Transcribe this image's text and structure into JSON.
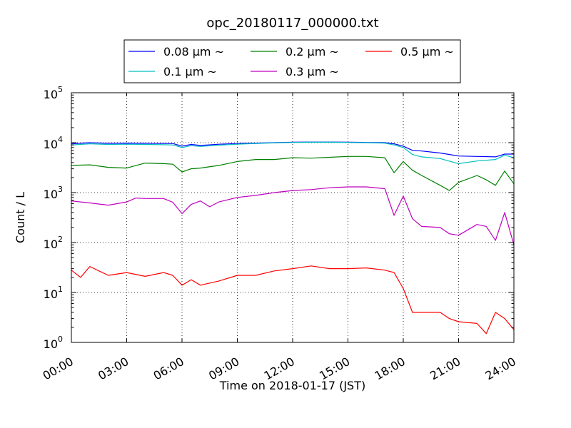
{
  "chart_data": {
    "type": "line",
    "title": "opc_20180117_000000.txt",
    "xlabel": "Time on 2018-01-17 (JST)",
    "ylabel": "Count / L",
    "x_ticks": [
      "00:00",
      "03:00",
      "06:00",
      "09:00",
      "12:00",
      "15:00",
      "18:00",
      "21:00",
      "24:00"
    ],
    "y_scale": "log",
    "ylim": [
      1,
      100000
    ],
    "xlim": [
      "00:00",
      "24:00"
    ],
    "y_ticks": [
      {
        "base": "10",
        "exp": "0"
      },
      {
        "base": "10",
        "exp": "1"
      },
      {
        "base": "10",
        "exp": "2"
      },
      {
        "base": "10",
        "exp": "3"
      },
      {
        "base": "10",
        "exp": "4"
      },
      {
        "base": "10",
        "exp": "5"
      }
    ],
    "grid": true,
    "legend_position": "top-center",
    "series": [
      {
        "name": "0.08 μm ~",
        "color": "#0000ff",
        "x": [
          "00:00",
          "01:00",
          "02:00",
          "03:00",
          "04:00",
          "05:00",
          "05:30",
          "06:00",
          "06:30",
          "07:00",
          "08:00",
          "09:00",
          "10:00",
          "11:00",
          "12:00",
          "13:00",
          "14:00",
          "15:00",
          "16:00",
          "17:00",
          "17:30",
          "18:00",
          "18:30",
          "19:00",
          "20:00",
          "21:00",
          "22:00",
          "23:00",
          "23:30",
          "24:00"
        ],
        "values": [
          9500,
          10000,
          9700,
          9800,
          9700,
          9600,
          9600,
          8500,
          9200,
          8800,
          9300,
          9600,
          9800,
          10000,
          10200,
          10300,
          10300,
          10200,
          10100,
          10000,
          9500,
          8500,
          7000,
          6800,
          6200,
          5400,
          5300,
          5200,
          5900,
          5900
        ]
      },
      {
        "name": "0.1 μm ~",
        "color": "#00bfbf",
        "x": [
          "00:00",
          "01:00",
          "02:00",
          "03:00",
          "04:00",
          "05:00",
          "05:30",
          "06:00",
          "06:30",
          "07:00",
          "08:00",
          "09:00",
          "10:00",
          "11:00",
          "12:00",
          "13:00",
          "14:00",
          "15:00",
          "16:00",
          "17:00",
          "17:30",
          "18:00",
          "18:30",
          "19:00",
          "20:00",
          "21:00",
          "22:00",
          "23:00",
          "23:30",
          "24:00"
        ],
        "values": [
          9000,
          9500,
          9200,
          9300,
          9200,
          9100,
          9000,
          8000,
          8700,
          8400,
          8900,
          9300,
          9600,
          9900,
          10100,
          10200,
          10200,
          10100,
          10000,
          9800,
          9000,
          8000,
          5800,
          5200,
          4800,
          3800,
          4300,
          4600,
          5600,
          5000
        ]
      },
      {
        "name": "0.2 μm ~",
        "color": "#008000",
        "x": [
          "00:00",
          "01:00",
          "02:00",
          "03:00",
          "04:00",
          "05:00",
          "05:30",
          "06:00",
          "06:30",
          "07:00",
          "08:00",
          "09:00",
          "10:00",
          "11:00",
          "12:00",
          "13:00",
          "14:00",
          "15:00",
          "16:00",
          "17:00",
          "17:30",
          "18:00",
          "18:30",
          "19:00",
          "20:00",
          "20:30",
          "21:00",
          "22:00",
          "22:30",
          "23:00",
          "23:30",
          "24:00"
        ],
        "values": [
          3500,
          3600,
          3200,
          3100,
          3900,
          3800,
          3700,
          2600,
          3000,
          3100,
          3500,
          4200,
          4600,
          4600,
          5000,
          4900,
          5100,
          5300,
          5300,
          5000,
          2500,
          4200,
          2800,
          2200,
          1400,
          1100,
          1600,
          2200,
          1800,
          1400,
          2700,
          1500
        ]
      },
      {
        "name": "0.3 μm ~",
        "color": "#bf00bf",
        "x": [
          "00:00",
          "01:00",
          "02:00",
          "03:00",
          "03:30",
          "04:00",
          "05:00",
          "05:30",
          "06:00",
          "06:30",
          "07:00",
          "07:30",
          "08:00",
          "09:00",
          "10:00",
          "11:00",
          "12:00",
          "13:00",
          "14:00",
          "15:00",
          "16:00",
          "17:00",
          "17:30",
          "18:00",
          "18:30",
          "19:00",
          "20:00",
          "20:30",
          "21:00",
          "22:00",
          "22:30",
          "23:00",
          "23:30",
          "24:00"
        ],
        "values": [
          680,
          620,
          560,
          650,
          780,
          760,
          760,
          640,
          380,
          580,
          680,
          520,
          650,
          800,
          880,
          1000,
          1100,
          1150,
          1250,
          1300,
          1300,
          1200,
          350,
          850,
          300,
          210,
          200,
          150,
          140,
          230,
          210,
          110,
          400,
          90
        ]
      },
      {
        "name": "0.5 μm ~",
        "color": "#ff0000",
        "x": [
          "00:00",
          "00:30",
          "01:00",
          "02:00",
          "03:00",
          "04:00",
          "05:00",
          "05:30",
          "06:00",
          "06:30",
          "07:00",
          "08:00",
          "09:00",
          "10:00",
          "11:00",
          "12:00",
          "13:00",
          "14:00",
          "15:00",
          "16:00",
          "17:00",
          "17:30",
          "18:00",
          "18:30",
          "19:00",
          "20:00",
          "20:30",
          "21:00",
          "22:00",
          "22:30",
          "23:00",
          "23:30",
          "24:00"
        ],
        "values": [
          28,
          20,
          33,
          22,
          25,
          21,
          25,
          22,
          14,
          18,
          14,
          17,
          22,
          22,
          27,
          30,
          34,
          30,
          30,
          31,
          28,
          25,
          12,
          4,
          4,
          4,
          3,
          2.6,
          2.4,
          1.5,
          4,
          3,
          1.8
        ]
      }
    ]
  }
}
